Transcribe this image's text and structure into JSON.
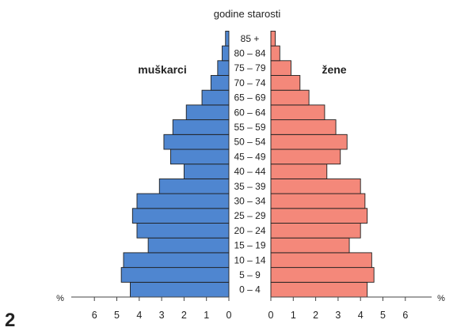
{
  "figure_number": "2",
  "chart_data": {
    "type": "bar",
    "orientation": "horizontal",
    "title": "godine starosti",
    "categories": [
      "0 – 4",
      "5 – 9",
      "10 – 14",
      "15 – 19",
      "20 – 24",
      "25 – 29",
      "30 – 34",
      "35 – 39",
      "40 – 44",
      "45 – 49",
      "50 – 54",
      "55 – 59",
      "60 – 64",
      "65 – 69",
      "70 – 74",
      "75 – 79",
      "80 – 84",
      "85 +"
    ],
    "series": [
      {
        "name": "muškarci",
        "color": "#4f86d0",
        "side": "left",
        "values": [
          4.4,
          4.8,
          4.7,
          3.6,
          4.1,
          4.3,
          4.1,
          3.1,
          2.0,
          2.6,
          2.9,
          2.5,
          1.9,
          1.2,
          0.8,
          0.5,
          0.3,
          0.15
        ]
      },
      {
        "name": "žene",
        "color": "#f4887a",
        "side": "right",
        "values": [
          4.3,
          4.6,
          4.5,
          3.5,
          4.0,
          4.3,
          4.2,
          4.0,
          2.5,
          3.1,
          3.4,
          2.9,
          2.4,
          1.7,
          1.3,
          0.9,
          0.4,
          0.2
        ]
      }
    ],
    "xlabel_left": "%",
    "xlabel_right": "%",
    "xlim": [
      0,
      6
    ],
    "x_ticks_left": [
      "6",
      "5",
      "4",
      "3",
      "2",
      "1",
      "0"
    ],
    "x_ticks_right": [
      "0",
      "1",
      "2",
      "3",
      "4",
      "5",
      "6"
    ]
  }
}
